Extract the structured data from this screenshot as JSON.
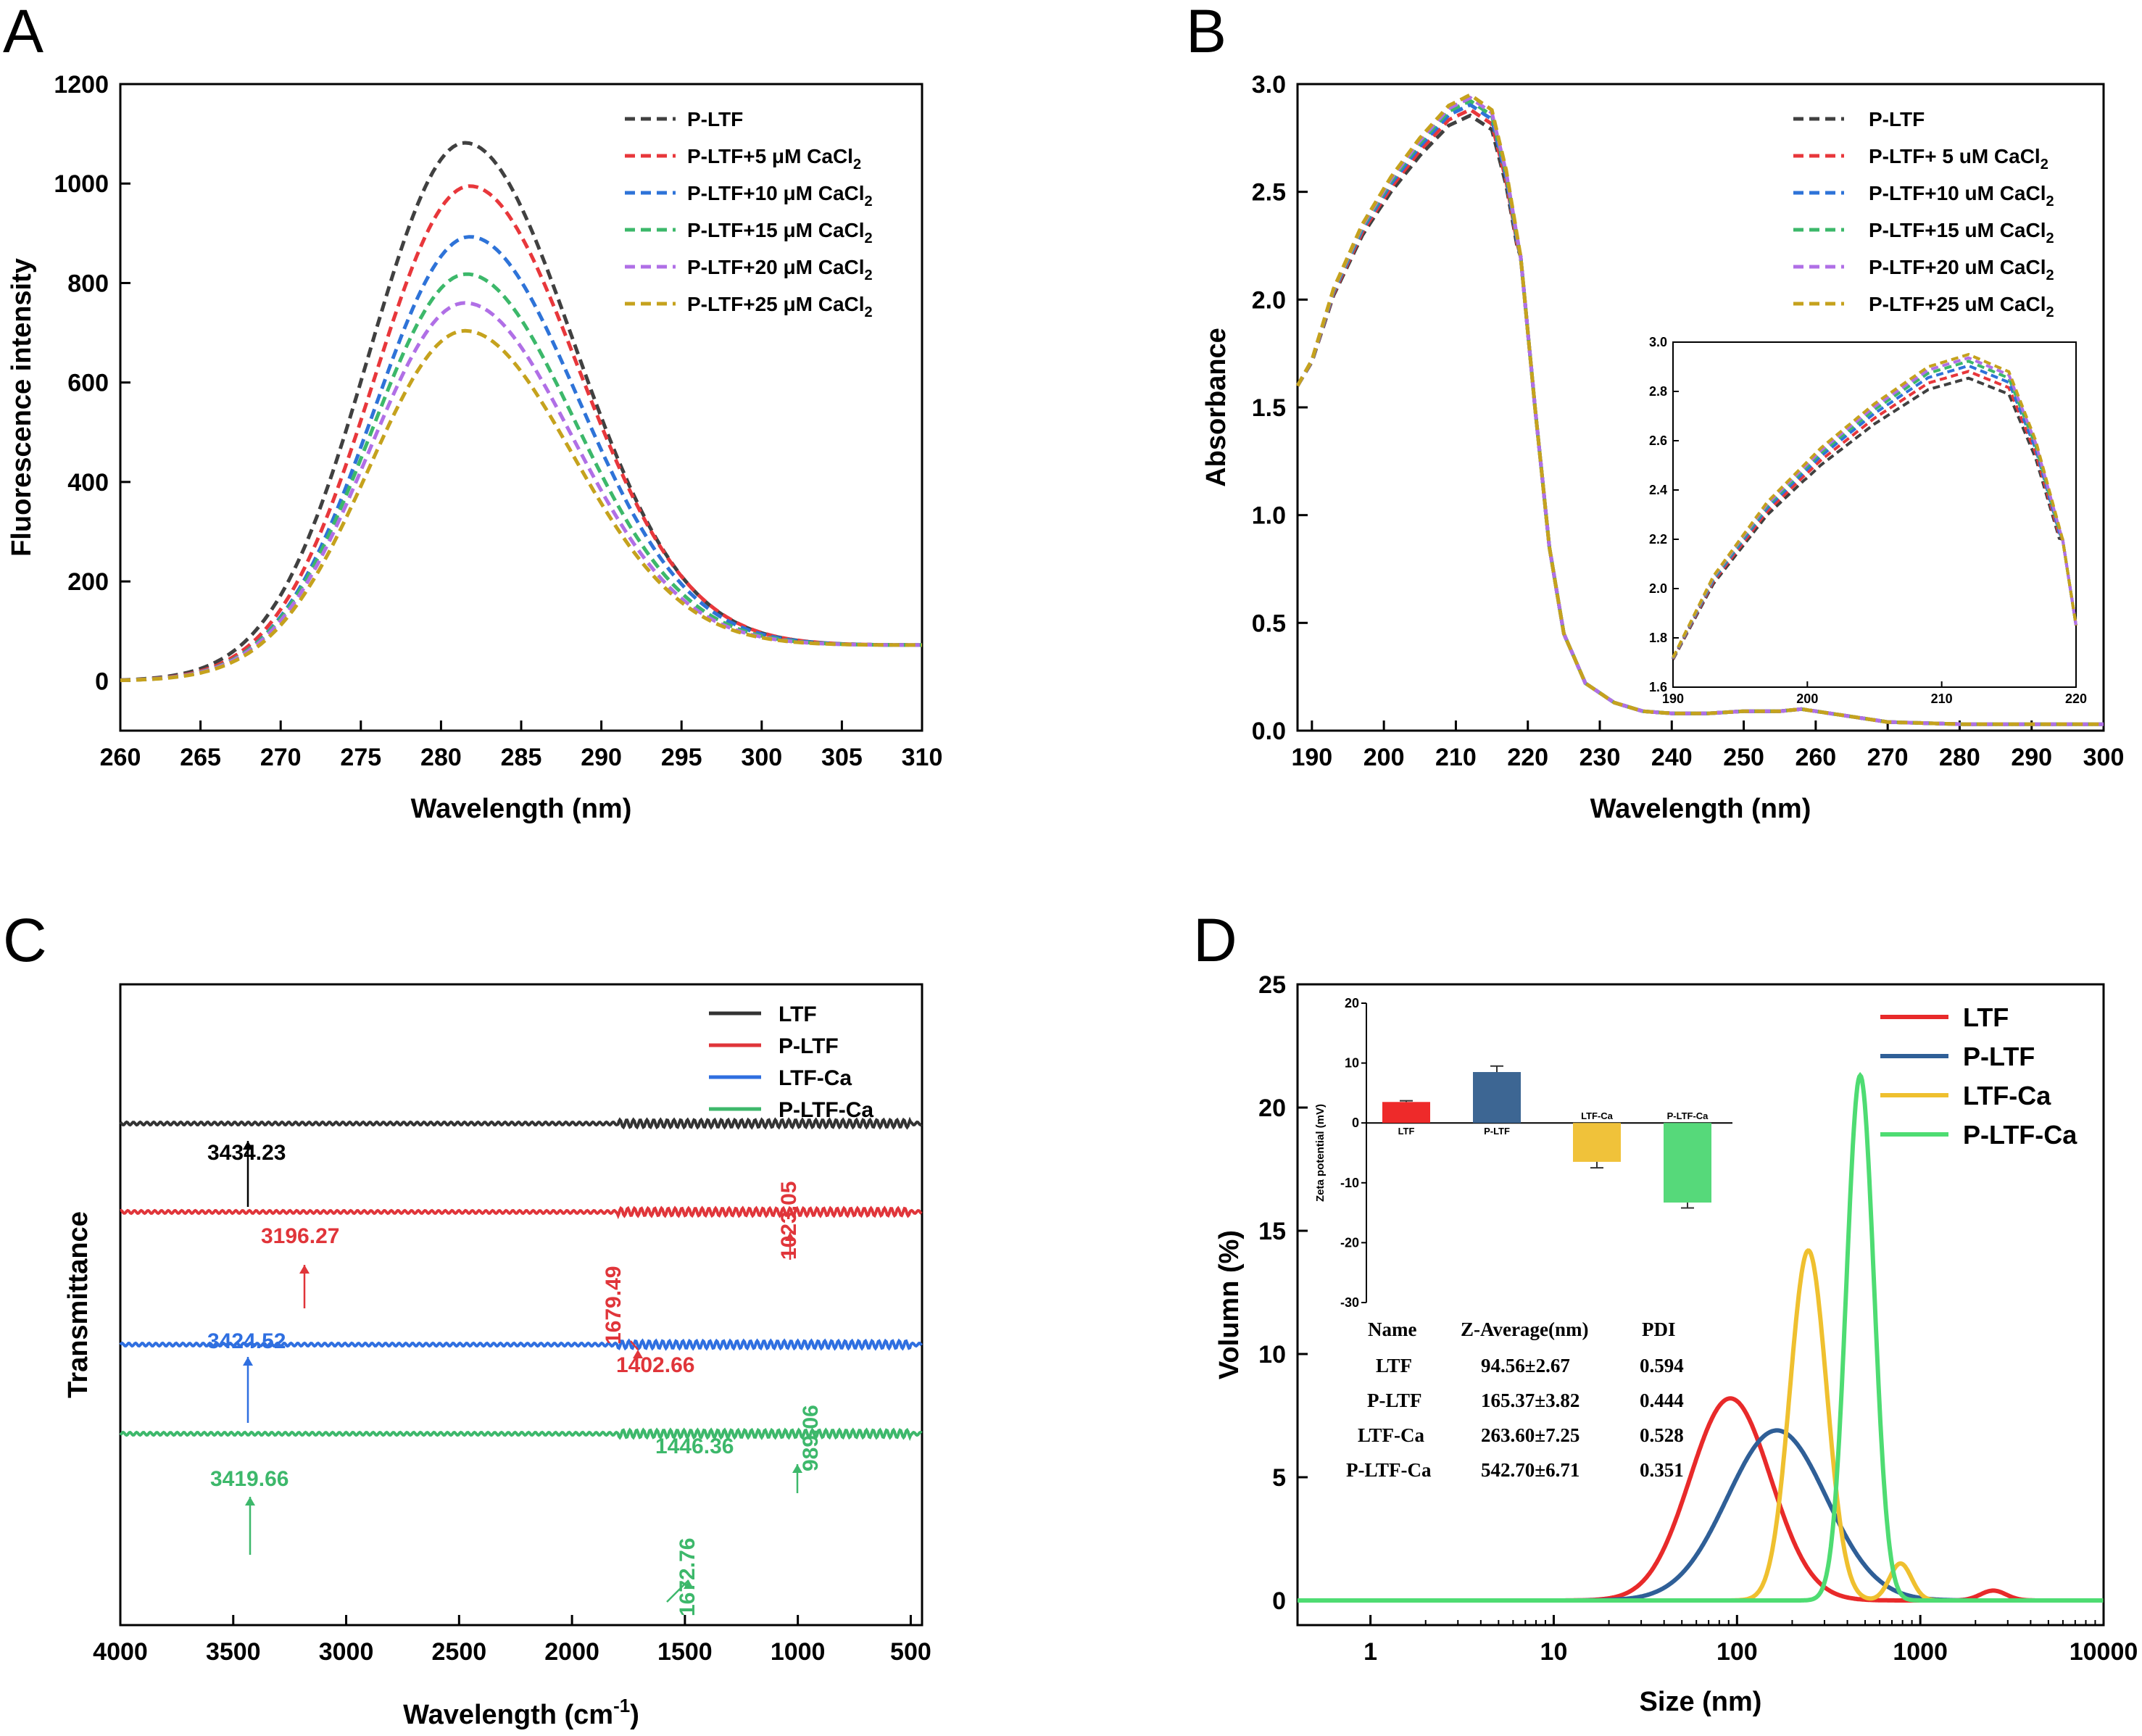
{
  "chart_data": [
    {
      "panel": "A",
      "type": "line",
      "xlabel": "Wavelength (nm)",
      "ylabel": "Fluorescence intensity",
      "xlim": [
        260,
        310
      ],
      "ylim": [
        -100,
        1200
      ],
      "xticks": [
        260,
        265,
        270,
        275,
        280,
        285,
        290,
        295,
        300,
        305,
        310
      ],
      "yticks": [
        0,
        200,
        400,
        600,
        800,
        1000,
        1200
      ],
      "legend_position": "top-right",
      "line_style": "dashed",
      "series": [
        {
          "name": "P-LTF",
          "name_suffix": "",
          "color": "#404040",
          "peak_x": 281.5,
          "peak_y": 1082
        },
        {
          "name": "P-LTF+5 μM CaCl",
          "name_suffix": "2",
          "color": "#e8373b",
          "peak_x": 281.8,
          "peak_y": 995
        },
        {
          "name": "P-LTF+10 μM CaCl",
          "name_suffix": "2",
          "color": "#2e73d8",
          "peak_x": 281.8,
          "peak_y": 893
        },
        {
          "name": "P-LTF+15 μM CaCl",
          "name_suffix": "2",
          "color": "#3cb86a",
          "peak_x": 281.6,
          "peak_y": 818
        },
        {
          "name": "P-LTF+20 μM CaCl",
          "name_suffix": "2",
          "color": "#b06fe6",
          "peak_x": 281.5,
          "peak_y": 760
        },
        {
          "name": "P-LTF+25 μM CaCl",
          "name_suffix": "2",
          "color": "#c5a21d",
          "peak_x": 281.5,
          "peak_y": 704
        }
      ],
      "baseline_start": 0,
      "baseline_end": 72
    },
    {
      "panel": "B",
      "type": "line",
      "xlabel": "Wavelength (nm)",
      "ylabel": "Absorbance",
      "xlim": [
        188,
        300
      ],
      "ylim": [
        0,
        3.0
      ],
      "xticks": [
        190,
        200,
        210,
        220,
        230,
        240,
        250,
        260,
        270,
        280,
        290,
        300
      ],
      "yticks": [
        0.0,
        0.5,
        1.0,
        1.5,
        2.0,
        2.5,
        3.0
      ],
      "legend_position": "top-right",
      "line_style": "dashed",
      "series": [
        {
          "name": "P-LTF",
          "name_suffix": "",
          "color": "#404040",
          "peak_y": 2.74
        },
        {
          "name": "P-LTF+ 5 uM CaCl",
          "name_suffix": "2",
          "color": "#e8373b",
          "peak_y": 2.8
        },
        {
          "name": "P-LTF+10 uM CaCl",
          "name_suffix": "2",
          "color": "#2e73d8",
          "peak_y": 2.85
        },
        {
          "name": "P-LTF+15 uM CaCl",
          "name_suffix": "2",
          "color": "#3cb86a",
          "peak_y": 2.89
        },
        {
          "name": "P-LTF+20 uM CaCl",
          "name_suffix": "2",
          "color": "#b06fe6",
          "peak_y": 2.92
        },
        {
          "name": "P-LTF+25 uM CaCl",
          "name_suffix": "2",
          "color": "#c5a21d",
          "peak_y": 2.95
        }
      ],
      "tail_points": [
        [
          219,
          2.2
        ],
        [
          221,
          1.5
        ],
        [
          223,
          0.85
        ],
        [
          225,
          0.45
        ],
        [
          228,
          0.22
        ],
        [
          232,
          0.13
        ],
        [
          236,
          0.09
        ],
        [
          240,
          0.08
        ],
        [
          245,
          0.08
        ],
        [
          250,
          0.09
        ],
        [
          255,
          0.09
        ],
        [
          258,
          0.1
        ],
        [
          262,
          0.08
        ],
        [
          266,
          0.06
        ],
        [
          270,
          0.04
        ],
        [
          280,
          0.03
        ],
        [
          300,
          0.03
        ]
      ],
      "inset": {
        "xlim": [
          190,
          220
        ],
        "ylim": [
          1.6,
          3.0
        ],
        "xticks": [
          190,
          200,
          210,
          220
        ],
        "yticks": [
          1.6,
          1.8,
          2.0,
          2.2,
          2.4,
          2.6,
          2.8,
          3.0
        ]
      }
    },
    {
      "panel": "C",
      "type": "line",
      "xlabel": "Wavelength (cm",
      "xlabel_sup": "-1",
      "xlabel_close": ")",
      "ylabel": "Transmittance",
      "xlim": [
        4000,
        450
      ],
      "xticks": [
        4000,
        3500,
        3000,
        2500,
        2000,
        1500,
        1000,
        500
      ],
      "legend_position": "top-right",
      "line_style": "solid",
      "series": [
        {
          "name": "LTF",
          "color": "#333333",
          "offset": 0
        },
        {
          "name": "P-LTF",
          "color": "#e0353a",
          "offset": 1
        },
        {
          "name": "LTF-Ca",
          "color": "#2f6fe0",
          "offset": 2
        },
        {
          "name": "P-LTF-Ca",
          "color": "#3db86b",
          "offset": 3
        }
      ],
      "annotations": [
        {
          "text": "3434.23",
          "color": "#000000",
          "series": "LTF",
          "x": 3434
        },
        {
          "text": "3196.27",
          "color": "#e0353a",
          "series": "P-LTF",
          "x": 3196
        },
        {
          "text": "1023.05",
          "color": "#e0353a",
          "series": "P-LTF",
          "x": 1023
        },
        {
          "text": "1679.49",
          "color": "#e0353a",
          "series": "P-LTF",
          "x": 1679
        },
        {
          "text": "1402.66",
          "color": "#e0353a",
          "series": "P-LTF",
          "x": 1403
        },
        {
          "text": "3424.52",
          "color": "#2f6fe0",
          "series": "LTF-Ca",
          "x": 3424
        },
        {
          "text": "3419.66",
          "color": "#3db86b",
          "series": "P-LTF-Ca",
          "x": 3420
        },
        {
          "text": "1446.36",
          "color": "#3db86b",
          "series": "P-LTF-Ca",
          "x": 1446
        },
        {
          "text": "989.06",
          "color": "#3db86b",
          "series": "P-LTF-Ca",
          "x": 989
        },
        {
          "text": "1672.76",
          "color": "#3db86b",
          "series": "P-LTF-Ca",
          "x": 1673
        }
      ]
    },
    {
      "panel": "D",
      "type": "line",
      "xlabel": "Size (nm)",
      "ylabel": "Volumn (%)",
      "xscale": "log",
      "xlim": [
        0.4,
        10000
      ],
      "ylim": [
        -1,
        25
      ],
      "xticks": [
        1,
        10,
        100,
        1000,
        10000
      ],
      "yticks": [
        0,
        5,
        10,
        15,
        20,
        25
      ],
      "legend_position": "top-right",
      "line_style": "solid",
      "series": [
        {
          "name": "LTF",
          "color": "#e82a2a",
          "peak_x": 92,
          "peak_y": 8.2
        },
        {
          "name": "P-LTF",
          "color": "#2f5f97",
          "peak_x": 165,
          "peak_y": 6.9
        },
        {
          "name": "LTF-Ca",
          "color": "#efc02f",
          "peak_x": 245,
          "peak_y": 14.2
        },
        {
          "name": "P-LTF-Ca",
          "color": "#4edc72",
          "peak_x": 470,
          "peak_y": 21.3
        }
      ],
      "inset_bar": {
        "ylabel": "Zeta potential (mV)",
        "ylim": [
          -30,
          20
        ],
        "yticks": [
          20,
          10,
          0,
          -10,
          -20,
          -30
        ],
        "categories": [
          "LTF",
          "P-LTF",
          "LTF-Ca",
          "P-LTF-Ca"
        ],
        "values": [
          3.5,
          8.5,
          -6.5,
          -13.3
        ],
        "errors": [
          0.2,
          1.0,
          1.0,
          0.9
        ],
        "colors": [
          "#ee2a2a",
          "#3d6693",
          "#f0c23a",
          "#56d97a"
        ]
      },
      "table": {
        "headers": [
          "Name",
          "Z-Average(nm)",
          "PDI"
        ],
        "rows": [
          [
            "LTF",
            "94.56±2.67",
            "0.594"
          ],
          [
            "P-LTF",
            "165.37±3.82",
            "0.444"
          ],
          [
            "LTF-Ca",
            "263.60±7.25",
            "0.528"
          ],
          [
            "P-LTF-Ca",
            "542.70±6.71",
            "0.351"
          ]
        ]
      }
    }
  ],
  "panel_labels": [
    "A",
    "B",
    "C",
    "D"
  ]
}
